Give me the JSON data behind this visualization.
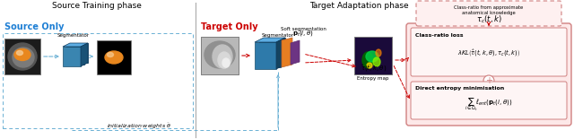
{
  "title_source": "Source Training phase",
  "title_target": "Target Adaptation phase",
  "label_source_only": "Source Only",
  "label_target_only": "Target Only",
  "label_segmentator_source": "Segmentator",
  "label_segmentator_target": "Segmentator",
  "label_soft_seg": "Soft segmentation",
  "label_entropy": "Entropy map",
  "label_init_weights": "initialization weights $\\tilde{\\theta}$",
  "label_pb": "$\\mathbf{p}_t(i,\\theta)$",
  "label_tau_hat": "$\\hat{\\tau}(t,k,\\theta)$",
  "box_top_title": "Class-ratio from approximate\nanatomical knowledge",
  "box_top_formula": "$\\tau_c(t,k)$",
  "box_mid_title": "Class-ratio loss",
  "box_mid_formula": "$\\lambda KL\\left(\\hat{\\tau}(t,k,\\theta),\\tau_c(t,k)\\right)$",
  "box_bot_title": "Direct entropy minimisation",
  "box_bot_formula": "$\\sum_{i\\in\\Omega_t}\\ell_{ent}(\\mathbf{p}_t(i,\\theta))$",
  "plus_label": "+",
  "bg_color": "#ffffff",
  "source_only_color": "#1e7fd4",
  "target_only_color": "#cc0000",
  "box_edge_color": "#d08080",
  "arrow_blue": "#6ab0d4",
  "arrow_red": "#cc0000",
  "divider_color": "#aaaaaa"
}
